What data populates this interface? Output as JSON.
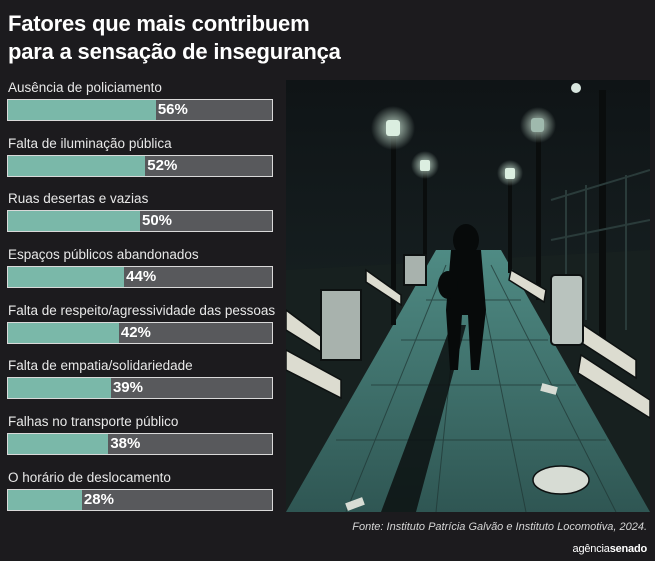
{
  "title_line1": "Fatores que mais contribuem",
  "title_line2": "para a sensação de insegurança",
  "chart_data": {
    "type": "bar",
    "title": "Fatores que mais contribuem para a sensação de insegurança",
    "categories": [
      "Ausência de policiamento",
      "Falta de iluminação pública",
      "Ruas desertas e vazias",
      "Espaços públicos abandonados",
      "Falta de respeito/agressividade das pessoas",
      "Falta de empatia/solidariedade",
      "Falhas no transporte público",
      "O horário de deslocamento"
    ],
    "values": [
      56,
      52,
      50,
      44,
      42,
      39,
      38,
      28
    ],
    "value_labels": [
      "56%",
      "52%",
      "50%",
      "44%",
      "42%",
      "39%",
      "38%",
      "28%"
    ],
    "xlim": [
      0,
      100
    ],
    "orientation": "horizontal",
    "bar_color": "#7ab8a9",
    "track_color": "#58595c"
  },
  "source": "Fonte: Instituto Patrícia Galvão e Instituto Locomotiva, 2024.",
  "logo": {
    "part1": "agência",
    "part2": "senado"
  }
}
